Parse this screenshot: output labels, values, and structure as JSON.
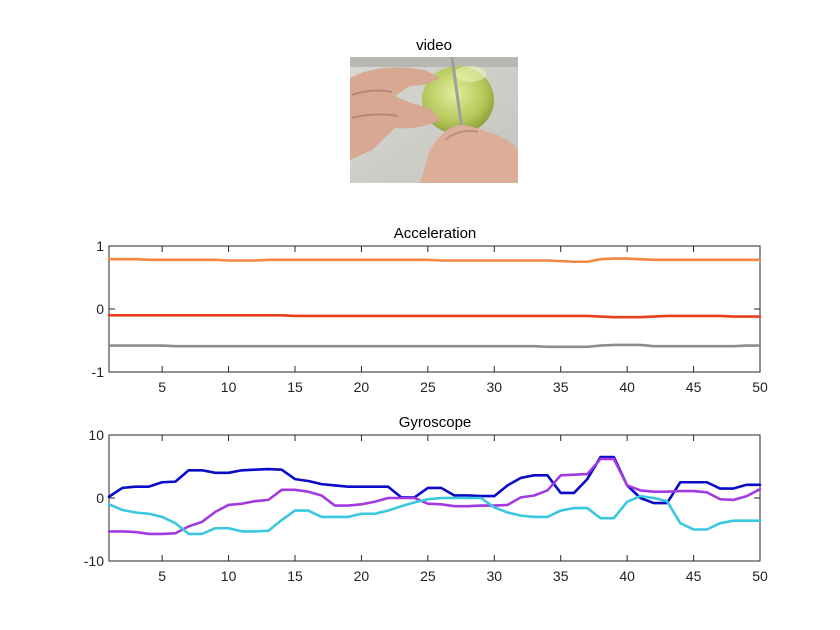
{
  "video": {
    "title": "video"
  },
  "chart_data": [
    {
      "type": "line",
      "title": "Acceleration",
      "xlabel": "",
      "ylabel": "",
      "xlim": [
        1,
        50
      ],
      "ylim": [
        -1,
        1
      ],
      "xticks": [
        5,
        10,
        15,
        20,
        25,
        30,
        35,
        40,
        45,
        50
      ],
      "yticks": [
        -1,
        0,
        1
      ],
      "grid": false,
      "x": [
        1,
        2,
        3,
        4,
        5,
        6,
        7,
        8,
        9,
        10,
        11,
        12,
        13,
        14,
        15,
        16,
        17,
        18,
        19,
        20,
        21,
        22,
        23,
        24,
        25,
        26,
        27,
        28,
        29,
        30,
        31,
        32,
        33,
        34,
        35,
        36,
        37,
        38,
        39,
        40,
        41,
        42,
        43,
        44,
        45,
        46,
        47,
        48,
        49,
        50
      ],
      "series": [
        {
          "color": "#f58742",
          "values": [
            0.79,
            0.79,
            0.79,
            0.78,
            0.78,
            0.78,
            0.78,
            0.78,
            0.78,
            0.77,
            0.77,
            0.77,
            0.78,
            0.78,
            0.78,
            0.78,
            0.78,
            0.78,
            0.78,
            0.78,
            0.78,
            0.78,
            0.78,
            0.78,
            0.78,
            0.77,
            0.77,
            0.77,
            0.77,
            0.77,
            0.77,
            0.77,
            0.77,
            0.77,
            0.76,
            0.75,
            0.75,
            0.79,
            0.8,
            0.8,
            0.79,
            0.78,
            0.78,
            0.78,
            0.78,
            0.78,
            0.78,
            0.78,
            0.78,
            0.78
          ]
        },
        {
          "color": "#e8401c",
          "values": [
            -0.1,
            -0.1,
            -0.1,
            -0.1,
            -0.1,
            -0.1,
            -0.1,
            -0.1,
            -0.1,
            -0.1,
            -0.1,
            -0.1,
            -0.1,
            -0.1,
            -0.11,
            -0.11,
            -0.11,
            -0.11,
            -0.11,
            -0.11,
            -0.11,
            -0.11,
            -0.11,
            -0.11,
            -0.11,
            -0.11,
            -0.11,
            -0.11,
            -0.11,
            -0.11,
            -0.11,
            -0.11,
            -0.11,
            -0.11,
            -0.11,
            -0.11,
            -0.11,
            -0.12,
            -0.13,
            -0.13,
            -0.13,
            -0.12,
            -0.11,
            -0.11,
            -0.11,
            -0.11,
            -0.11,
            -0.12,
            -0.12,
            -0.12
          ]
        },
        {
          "color": "#8c8c8c",
          "values": [
            -0.58,
            -0.58,
            -0.58,
            -0.58,
            -0.58,
            -0.59,
            -0.59,
            -0.59,
            -0.59,
            -0.59,
            -0.59,
            -0.59,
            -0.59,
            -0.59,
            -0.59,
            -0.59,
            -0.59,
            -0.59,
            -0.59,
            -0.59,
            -0.59,
            -0.59,
            -0.59,
            -0.59,
            -0.59,
            -0.59,
            -0.59,
            -0.59,
            -0.59,
            -0.59,
            -0.59,
            -0.59,
            -0.59,
            -0.6,
            -0.6,
            -0.6,
            -0.6,
            -0.58,
            -0.57,
            -0.57,
            -0.57,
            -0.59,
            -0.59,
            -0.59,
            -0.59,
            -0.59,
            -0.59,
            -0.59,
            -0.58,
            -0.58
          ]
        }
      ]
    },
    {
      "type": "line",
      "title": "Gyroscope",
      "xlabel": "",
      "ylabel": "",
      "xlim": [
        1,
        50
      ],
      "ylim": [
        -10,
        10
      ],
      "xticks": [
        5,
        10,
        15,
        20,
        25,
        30,
        35,
        40,
        45,
        50
      ],
      "yticks": [
        -10,
        0,
        10
      ],
      "grid": false,
      "x": [
        1,
        2,
        3,
        4,
        5,
        6,
        7,
        8,
        9,
        10,
        11,
        12,
        13,
        14,
        15,
        16,
        17,
        18,
        19,
        20,
        21,
        22,
        23,
        24,
        25,
        26,
        27,
        28,
        29,
        30,
        31,
        32,
        33,
        34,
        35,
        36,
        37,
        38,
        39,
        40,
        41,
        42,
        43,
        44,
        45,
        46,
        47,
        48,
        49,
        50
      ],
      "series": [
        {
          "color": "#0a0ac8",
          "values": [
            0.2,
            1.6,
            1.8,
            1.8,
            2.5,
            2.6,
            4.4,
            4.4,
            4.0,
            4.0,
            4.4,
            4.5,
            4.6,
            4.5,
            3.0,
            2.7,
            2.2,
            2.0,
            1.8,
            1.8,
            1.8,
            1.8,
            0.1,
            0.1,
            1.6,
            1.6,
            0.4,
            0.4,
            0.3,
            0.3,
            2.0,
            3.2,
            3.6,
            3.6,
            0.8,
            0.8,
            3.0,
            6.5,
            6.5,
            2.0,
            0.0,
            -0.8,
            -0.8,
            2.5,
            2.5,
            2.5,
            1.5,
            1.5,
            2.1,
            2.1
          ]
        },
        {
          "color": "#a33ae0",
          "values": [
            -5.3,
            -5.3,
            -5.4,
            -5.7,
            -5.7,
            -5.6,
            -4.5,
            -3.8,
            -2.2,
            -1.1,
            -0.9,
            -0.5,
            -0.3,
            1.3,
            1.3,
            1.0,
            0.4,
            -1.2,
            -1.2,
            -1.0,
            -0.6,
            0.0,
            0.0,
            0.0,
            -0.9,
            -1.0,
            -1.3,
            -1.3,
            -1.2,
            -1.2,
            -1.1,
            0.1,
            0.4,
            1.2,
            3.6,
            3.7,
            3.8,
            6.2,
            6.2,
            2.0,
            1.2,
            1.0,
            1.0,
            1.1,
            1.1,
            0.9,
            -0.2,
            -0.3,
            0.3,
            1.4
          ]
        },
        {
          "color": "#3ac8e0",
          "values": [
            -1.0,
            -1.9,
            -2.3,
            -2.5,
            -3.0,
            -4.0,
            -5.7,
            -5.7,
            -4.8,
            -4.8,
            -5.3,
            -5.3,
            -5.2,
            -3.5,
            -2.0,
            -2.0,
            -3.0,
            -3.0,
            -3.0,
            -2.5,
            -2.5,
            -2.0,
            -1.3,
            -0.7,
            -0.2,
            0.0,
            0.0,
            0.0,
            0.0,
            -1.5,
            -2.3,
            -2.8,
            -3.0,
            -3.0,
            -2.0,
            -1.6,
            -1.6,
            -3.2,
            -3.2,
            -0.6,
            0.3,
            0.0,
            -0.5,
            -4.0,
            -5.0,
            -5.0,
            -4.0,
            -3.6,
            -3.6,
            -3.6
          ]
        }
      ]
    }
  ]
}
